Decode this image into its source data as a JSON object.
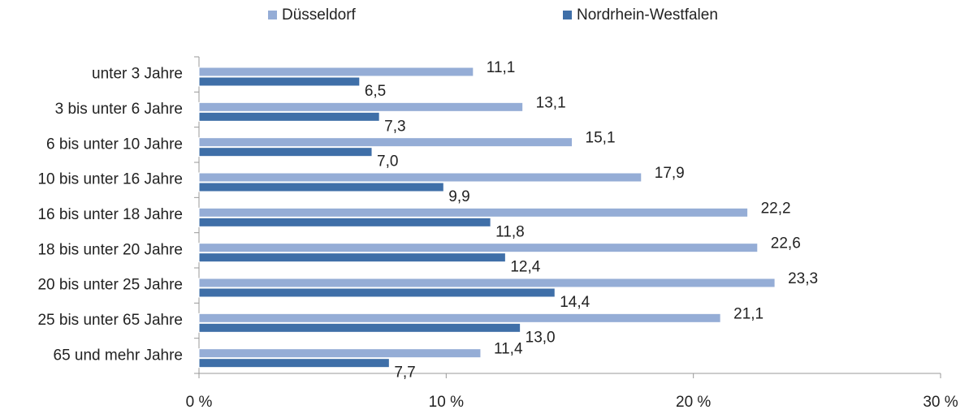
{
  "chart_data": {
    "type": "bar",
    "orientation": "horizontal",
    "categories": [
      "unter 3 Jahre",
      "3 bis unter 6 Jahre",
      "6 bis unter 10 Jahre",
      "10 bis unter 16 Jahre",
      "16 bis unter 18 Jahre",
      "18 bis unter 20 Jahre",
      "20 bis unter 25 Jahre",
      "25 bis unter 65 Jahre",
      "65 und mehr Jahre"
    ],
    "series": [
      {
        "name": "Düsseldorf",
        "color": "#95add6",
        "values": [
          11.1,
          13.1,
          15.1,
          17.9,
          22.2,
          22.6,
          23.3,
          21.1,
          11.4
        ],
        "value_labels": [
          "11,1",
          "13,1",
          "15,1",
          "17,9",
          "22,2",
          "22,6",
          "23,3",
          "21,1",
          "11,4"
        ]
      },
      {
        "name": "Nordrhein-Westfalen",
        "color": "#3f6fa8",
        "values": [
          6.5,
          7.3,
          7.0,
          9.9,
          11.8,
          12.4,
          14.4,
          13.0,
          7.7
        ],
        "value_labels": [
          "6,5",
          "7,3",
          "7,0",
          "9,9",
          "11,8",
          "12,4",
          "14,4",
          "13,0",
          "7,7"
        ]
      }
    ],
    "xlim": [
      0,
      30
    ],
    "xticks": [
      {
        "value": 0,
        "label": "0 %"
      },
      {
        "value": 10,
        "label": "10 %"
      },
      {
        "value": 20,
        "label": "20 %"
      },
      {
        "value": 30,
        "label": "30 %"
      }
    ],
    "legend": "top",
    "grid": false
  }
}
